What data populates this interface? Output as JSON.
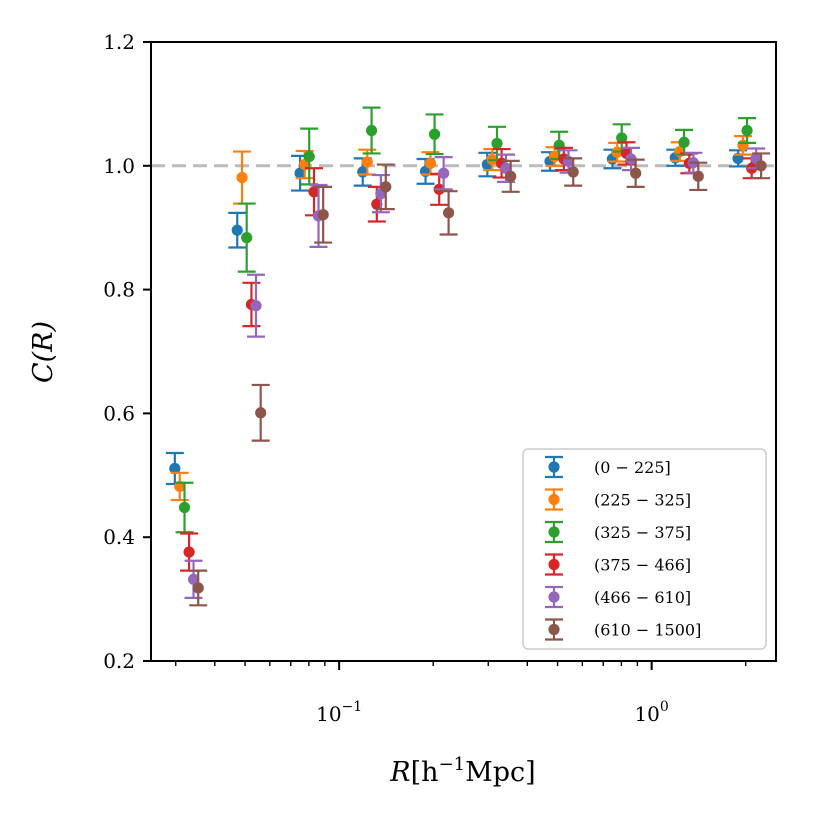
{
  "chart_data": {
    "type": "scatter",
    "title": "",
    "xlabel_parts": {
      "var": "R",
      "open": "[h",
      "exp": "−1",
      "close": "Mpc]"
    },
    "ylabel": "C(R)",
    "xscale": "log",
    "xlim": [
      0.025,
      2.5
    ],
    "ylim": [
      0.2,
      1.2
    ],
    "yticks": [
      0.2,
      0.4,
      0.6,
      0.8,
      1.0,
      1.2
    ],
    "ytick_labels": [
      "0.2",
      "0.4",
      "0.6",
      "0.8",
      "1.0",
      "1.2"
    ],
    "xticks_major": [
      0.1,
      1.0
    ],
    "xtick_labels": [
      {
        "base": "10",
        "exp": "−1"
      },
      {
        "base": "10",
        "exp": "0"
      }
    ],
    "xticks_minor": [
      0.03,
      0.04,
      0.05,
      0.06,
      0.07,
      0.08,
      0.09,
      0.2,
      0.3,
      0.4,
      0.5,
      0.6,
      0.7,
      0.8,
      0.9,
      2.0
    ],
    "reference_line": {
      "y": 1.0,
      "style": "dashed",
      "color": "#bbbbbb"
    },
    "legend_position": "lower-right",
    "series": [
      {
        "name": "(0 − 225]",
        "color": "#1f77b4",
        "x": [
          0.0298,
          0.0472,
          0.075,
          0.119,
          0.189,
          0.298,
          0.473,
          0.749,
          1.19,
          1.89
        ],
        "y": [
          0.511,
          0.896,
          0.988,
          0.99,
          0.991,
          1.002,
          1.007,
          1.011,
          1.013,
          1.012
        ],
        "err": [
          0.025,
          0.028,
          0.028,
          0.022,
          0.02,
          0.019,
          0.015,
          0.015,
          0.013,
          0.013
        ]
      },
      {
        "name": "(225 − 325]",
        "color": "#ff7f0e",
        "x": [
          0.0309,
          0.0489,
          0.0776,
          0.123,
          0.196,
          0.309,
          0.489,
          0.776,
          1.23,
          1.96
        ],
        "y": [
          0.482,
          0.981,
          1.002,
          1.006,
          1.004,
          1.01,
          1.015,
          1.022,
          1.023,
          1.033
        ],
        "err": [
          0.022,
          0.042,
          0.022,
          0.02,
          0.018,
          0.017,
          0.015,
          0.015,
          0.015,
          0.015
        ]
      },
      {
        "name": "(325 − 375]",
        "color": "#2ca02c",
        "x": [
          0.032,
          0.0506,
          0.0802,
          0.127,
          0.202,
          0.32,
          0.506,
          0.802,
          1.27,
          2.02
        ],
        "y": [
          0.448,
          0.884,
          1.015,
          1.057,
          1.051,
          1.036,
          1.033,
          1.045,
          1.038,
          1.057
        ],
        "err": [
          0.04,
          0.055,
          0.045,
          0.037,
          0.032,
          0.027,
          0.022,
          0.022,
          0.02,
          0.02
        ]
      },
      {
        "name": "(375 − 466]",
        "color": "#d62728",
        "x": [
          0.0331,
          0.0524,
          0.0831,
          0.132,
          0.209,
          0.331,
          0.524,
          0.831,
          1.32,
          2.09
        ],
        "y": [
          0.376,
          0.776,
          0.958,
          0.938,
          0.962,
          1.004,
          1.011,
          1.02,
          1.004,
          0.996
        ],
        "err": [
          0.03,
          0.035,
          0.038,
          0.028,
          0.025,
          0.023,
          0.018,
          0.018,
          0.016,
          0.016
        ]
      },
      {
        "name": "(466 − 610]",
        "color": "#9467bd",
        "x": [
          0.0342,
          0.0542,
          0.0859,
          0.136,
          0.216,
          0.342,
          0.542,
          0.859,
          1.36,
          2.16
        ],
        "y": [
          0.332,
          0.774,
          0.919,
          0.955,
          0.988,
          0.996,
          1.007,
          1.011,
          1.005,
          1.012
        ],
        "err": [
          0.03,
          0.05,
          0.05,
          0.03,
          0.026,
          0.022,
          0.018,
          0.018,
          0.016,
          0.016
        ]
      },
      {
        "name": "(610 − 1500]",
        "color": "#8c564b",
        "x": [
          0.0354,
          0.0561,
          0.0889,
          0.141,
          0.224,
          0.354,
          0.561,
          0.889,
          1.41,
          2.24
        ],
        "y": [
          0.318,
          0.601,
          0.921,
          0.966,
          0.924,
          0.983,
          0.99,
          0.988,
          0.983,
          1.0
        ],
        "err": [
          0.028,
          0.045,
          0.045,
          0.036,
          0.035,
          0.025,
          0.022,
          0.022,
          0.022,
          0.02
        ]
      }
    ]
  }
}
